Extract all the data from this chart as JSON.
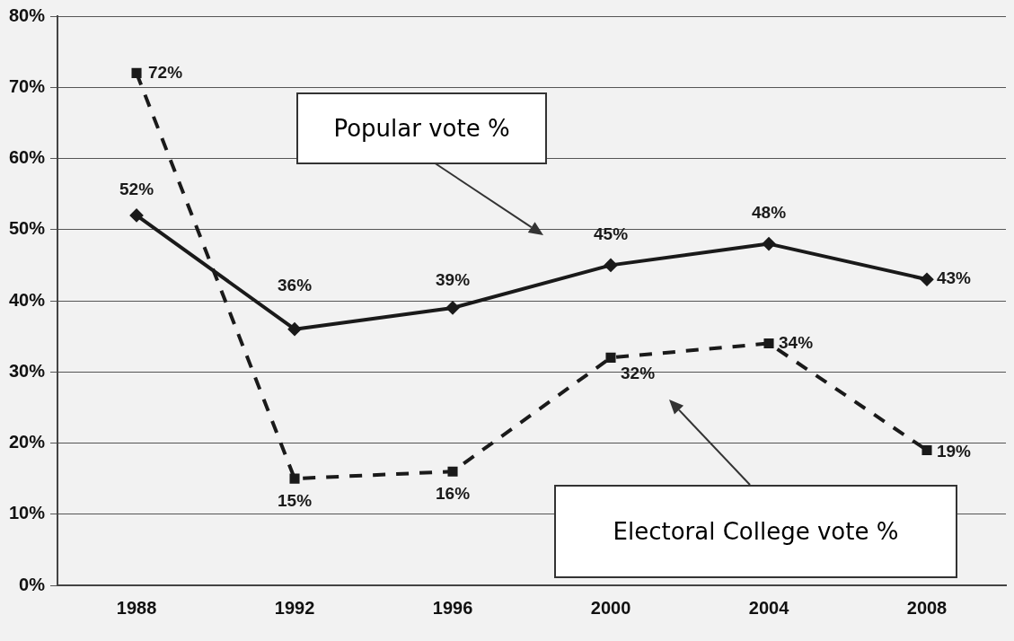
{
  "chart_data": {
    "type": "line",
    "categories": [
      "1988",
      "1992",
      "1996",
      "2000",
      "2004",
      "2008"
    ],
    "series": [
      {
        "color": "#1a1a1a",
        "values": [
          52,
          36,
          39,
          45,
          48,
          43
        ],
        "value_labels": [
          "52%",
          "36%",
          "39%",
          "45%",
          "48%",
          "43%"
        ],
        "marker": "diamond",
        "line_style": "solid"
      },
      {
        "color": "#1a1a1a",
        "values": [
          72,
          15,
          16,
          32,
          34,
          19
        ],
        "value_labels": [
          "72%",
          "15%",
          "16%",
          "32%",
          "34%",
          "19%"
        ],
        "marker": "square",
        "line_style": "dashed"
      }
    ],
    "ylim": [
      0,
      80
    ],
    "yticks": [
      {
        "value": 0,
        "label": "0%"
      },
      {
        "value": 10,
        "label": "10%"
      },
      {
        "value": 20,
        "label": "20%"
      },
      {
        "value": 30,
        "label": "30%"
      },
      {
        "value": 40,
        "label": "40%"
      },
      {
        "value": 50,
        "label": "50%"
      },
      {
        "value": 60,
        "label": "60%"
      },
      {
        "value": 70,
        "label": "70%"
      },
      {
        "value": 80,
        "label": "80%"
      }
    ],
    "grid": "y",
    "legend": false,
    "annotations": [
      "Popular vote %",
      "Electoral College vote %"
    ]
  }
}
